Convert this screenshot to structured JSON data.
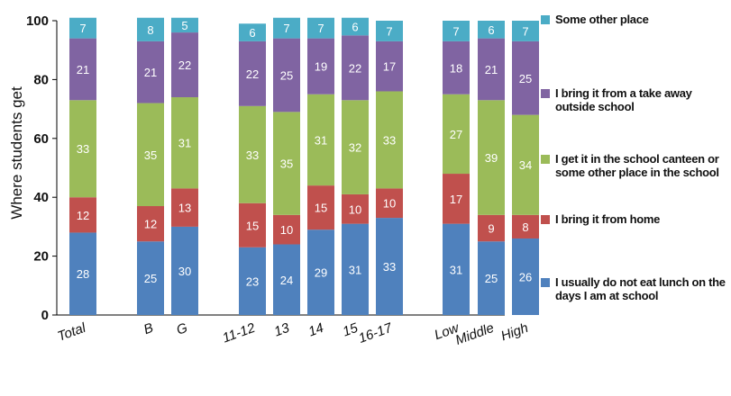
{
  "chart_data": {
    "type": "bar",
    "stacked": true,
    "title": "",
    "xlabel": "",
    "ylabel": "Where students get",
    "ylim": [
      0,
      100
    ],
    "yticks": [
      0,
      20,
      40,
      60,
      80,
      100
    ],
    "categories": [
      "Total",
      "B",
      "G",
      "11-12",
      "13",
      "14",
      "15",
      "16-17",
      "Low",
      "Middle",
      "High"
    ],
    "groups": [
      [
        0
      ],
      [
        1,
        2
      ],
      [
        3,
        4,
        5,
        6,
        7
      ],
      [
        8,
        9,
        10
      ]
    ],
    "series": [
      {
        "name": "I usually do not eat lunch on the days I am at school",
        "color": "#4F81BD",
        "values": [
          28,
          25,
          30,
          23,
          24,
          29,
          31,
          33,
          31,
          25,
          26
        ]
      },
      {
        "name": "I bring it from home",
        "color": "#C0504D",
        "values": [
          12,
          12,
          13,
          15,
          10,
          15,
          10,
          10,
          17,
          9,
          8
        ]
      },
      {
        "name": "I get it in the school canteen or some other place in the school",
        "color": "#9BBB59",
        "values": [
          33,
          35,
          31,
          33,
          35,
          31,
          32,
          33,
          27,
          39,
          34
        ]
      },
      {
        "name": "I bring it from a take away outside school",
        "color": "#8064A2",
        "values": [
          21,
          21,
          22,
          22,
          25,
          19,
          22,
          17,
          18,
          21,
          25
        ]
      },
      {
        "name": "Some other place",
        "color": "#4BACC6",
        "values": [
          7,
          8,
          5,
          6,
          7,
          7,
          6,
          7,
          7,
          6,
          7
        ]
      }
    ],
    "legend_position": "right",
    "grid": false
  },
  "legend": [
    {
      "label": "Some other place",
      "color": "#4BACC6"
    },
    {
      "label": "I bring it from a take away outside school",
      "color": "#8064A2"
    },
    {
      "label": "I get it in the school canteen or some other place in the school",
      "color": "#9BBB59"
    },
    {
      "label": "I bring it from home",
      "color": "#C0504D"
    },
    {
      "label": "I usually do not eat lunch on the days I am at school",
      "color": "#4F81BD"
    }
  ]
}
